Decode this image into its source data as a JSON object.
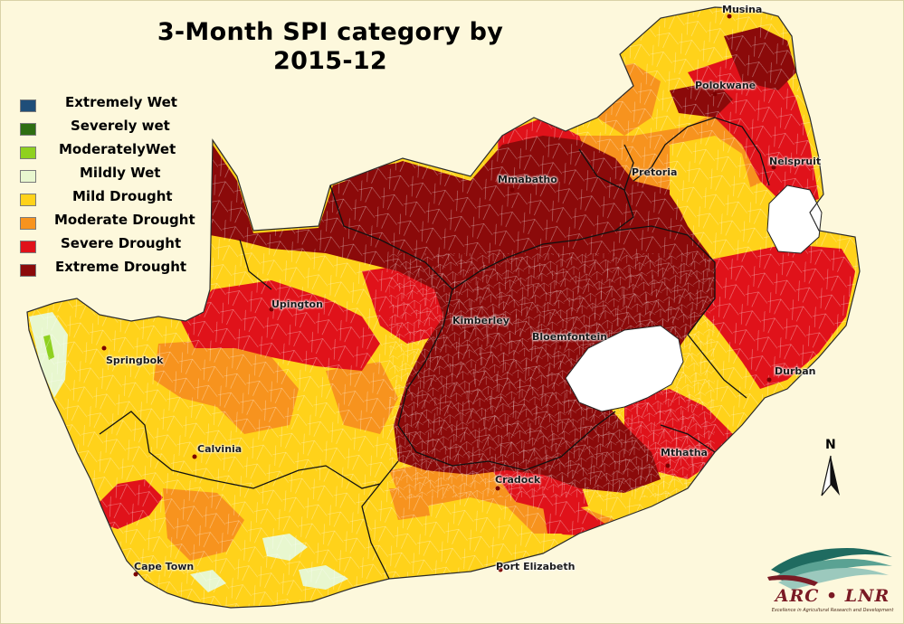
{
  "title": {
    "line1": "3-Month SPI category by",
    "line2": "2015-12"
  },
  "legend": [
    {
      "label": "Extremely Wet",
      "color": "#1f4e79"
    },
    {
      "label": "Severely wet",
      "color": "#2e6e12"
    },
    {
      "label": "ModeratelyWet",
      "color": "#8fd11f"
    },
    {
      "label": "Mildly Wet",
      "color": "#e8f7cf"
    },
    {
      "label": "Mild Drought",
      "color": "#ffd21a"
    },
    {
      "label": "Moderate Drought",
      "color": "#f7931e"
    },
    {
      "label": "Severe Drought",
      "color": "#e0121a"
    },
    {
      "label": "Extreme Drought",
      "color": "#8b0a0a"
    }
  ],
  "cities": {
    "musina": "Musina",
    "polokwane": "Polokwane",
    "nelspruit": "Nelspruit",
    "pretoria": "Pretoria",
    "mmabatho": "Mmabatho",
    "upington": "Upington",
    "kimberley": "Kimberley",
    "bloemfontein": "Bloemfontein",
    "springbok": "Springbok",
    "durban": "Durban",
    "calvinia": "Calvinia",
    "mthatha": "Mthatha",
    "cradock": "Cradock",
    "cape_town": "Cape Town",
    "port_elizabeth": "Port Elizabeth"
  },
  "north_arrow": "N",
  "logo": {
    "text": "ARC • LNR",
    "tagline": "Excellence in Agricultural Research and Development"
  },
  "colors": {
    "background": "#fdf8dc",
    "neighbour_white": "#ffffff",
    "district_lines": "#ffffff",
    "province_lines": "#111111"
  }
}
